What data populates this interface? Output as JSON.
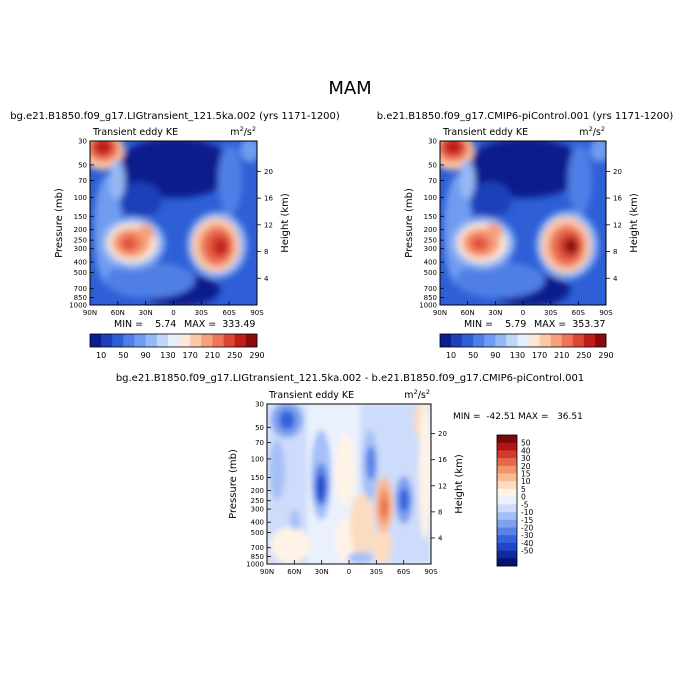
{
  "figure_title": "MAM",
  "colors": {
    "abs_levels": [
      "#0a1e8c",
      "#1f3fb8",
      "#2e5fd6",
      "#4f7fe6",
      "#6f9cf0",
      "#94b8f4",
      "#bfd6f8",
      "#e4eefc",
      "#fde8d8",
      "#fbc7a6",
      "#f6a07b",
      "#ee7556",
      "#dc4634",
      "#c21c1a",
      "#8c0a0a"
    ],
    "diff_levels": [
      "#08126e",
      "#0d2a9e",
      "#1f45c8",
      "#3563dc",
      "#5a83e8",
      "#7fa2f0",
      "#a5c0f6",
      "#cddcfa",
      "#eaf1fd",
      "#fff3e6",
      "#fcdcc0",
      "#f8bb93",
      "#f39469",
      "#e8674a",
      "#d33a2c",
      "#b3141a",
      "#7d0606"
    ]
  },
  "chart_data": [
    {
      "type": "heatmap",
      "title": "bg.e21.B1850.f09_g17.LIGtransient_121.5ka.002 (yrs 1171-1200)",
      "subtitle_left": "Transient eddy KE",
      "units": "m²/s²",
      "units_base": "m",
      "units_sup1": "2",
      "units_mid": "/s",
      "units_sup2": "2",
      "ylabel": "Pressure (mb)",
      "ylabel_right": "Height (km)",
      "x_ticks": [
        "90N",
        "60N",
        "30N",
        "0",
        "30S",
        "60S",
        "90S"
      ],
      "y_ticks": [
        "30",
        "50",
        "70",
        "100",
        "150",
        "200",
        "250",
        "300",
        "400",
        "500",
        "700",
        "850",
        "1000"
      ],
      "y_ticks_right": [
        "20",
        "16",
        "12",
        "8",
        "4"
      ],
      "min_text": "MIN =    5.74",
      "max_text": "MAX =  333.49",
      "colorbar_labels": [
        "10",
        "50",
        "90",
        "130",
        "170",
        "210",
        "250",
        "290"
      ]
    },
    {
      "type": "heatmap",
      "title": "b.e21.B1850.f09_g17.CMIP6-piControl.001 (yrs 1171-1200)",
      "subtitle_left": "Transient eddy KE",
      "units": "m²/s²",
      "units_base": "m",
      "units_sup1": "2",
      "units_mid": "/s",
      "units_sup2": "2",
      "ylabel": "Pressure (mb)",
      "ylabel_right": "Height (km)",
      "x_ticks": [
        "90N",
        "60N",
        "30N",
        "0",
        "30S",
        "60S",
        "90S"
      ],
      "y_ticks": [
        "30",
        "50",
        "70",
        "100",
        "150",
        "200",
        "250",
        "300",
        "400",
        "500",
        "700",
        "850",
        "1000"
      ],
      "y_ticks_right": [
        "20",
        "16",
        "12",
        "8",
        "4"
      ],
      "min_text": "MIN =    5.79",
      "max_text": "MAX =  353.37",
      "colorbar_labels": [
        "10",
        "50",
        "90",
        "130",
        "170",
        "210",
        "250",
        "290"
      ]
    },
    {
      "type": "heatmap",
      "title": "bg.e21.B1850.f09_g17.LIGtransient_121.5ka.002 - b.e21.B1850.f09_g17.CMIP6-piControl.001",
      "subtitle_left": "Transient eddy KE",
      "units": "m²/s²",
      "units_base": "m",
      "units_sup1": "2",
      "units_mid": "/s",
      "units_sup2": "2",
      "ylabel": "Pressure (mb)",
      "ylabel_right": "Height (km)",
      "x_ticks": [
        "90N",
        "60N",
        "30N",
        "0",
        "30S",
        "60S",
        "90S"
      ],
      "y_ticks": [
        "30",
        "50",
        "70",
        "100",
        "150",
        "200",
        "250",
        "300",
        "400",
        "500",
        "700",
        "850",
        "1000"
      ],
      "y_ticks_right": [
        "20",
        "16",
        "12",
        "8",
        "4"
      ],
      "min_text": "MIN =  -42.51",
      "max_text": "MAX =   36.51",
      "colorbar_labels": [
        "50",
        "40",
        "30",
        "20",
        "15",
        "10",
        "5",
        "0",
        "-5",
        "-10",
        "-15",
        "-20",
        "-30",
        "-40",
        "-50"
      ]
    }
  ]
}
